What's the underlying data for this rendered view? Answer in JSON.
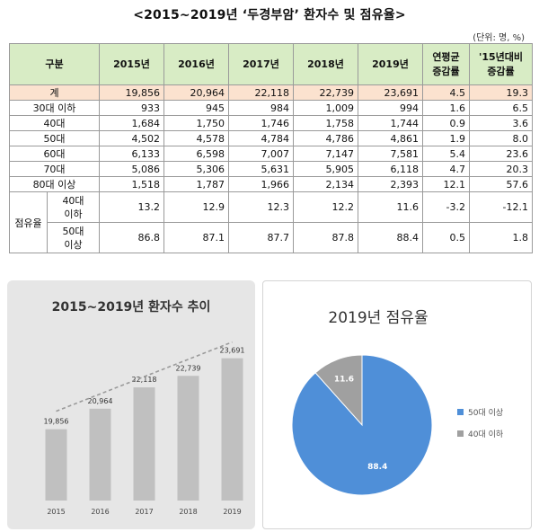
{
  "title": "<2015~2019년 ‘두경부암’ 환자수 및 점유율>",
  "unit": "(단위: 명, %)",
  "table": {
    "headers": {
      "group": "구분",
      "years": [
        "2015년",
        "2016년",
        "2017년",
        "2018년",
        "2019년"
      ],
      "cagr": [
        "연평균",
        "증감률"
      ],
      "change": [
        "'15년대비",
        "증감률"
      ]
    },
    "total": {
      "label": "계",
      "values": [
        "19,856",
        "20,964",
        "22,118",
        "22,739",
        "23,691",
        "4.5",
        "19.3"
      ]
    },
    "rows": [
      {
        "label": "30대 이하",
        "values": [
          "933",
          "945",
          "984",
          "1,009",
          "994",
          "1.6",
          "6.5"
        ]
      },
      {
        "label": "40대",
        "values": [
          "1,684",
          "1,750",
          "1,746",
          "1,758",
          "1,744",
          "0.9",
          "3.6"
        ]
      },
      {
        "label": "50대",
        "values": [
          "4,502",
          "4,578",
          "4,784",
          "4,786",
          "4,861",
          "1.9",
          "8.0"
        ]
      },
      {
        "label": "60대",
        "values": [
          "6,133",
          "6,598",
          "7,007",
          "7,147",
          "7,581",
          "5.4",
          "23.6"
        ]
      },
      {
        "label": "70대",
        "values": [
          "5,086",
          "5,306",
          "5,631",
          "5,905",
          "6,118",
          "4.7",
          "20.3"
        ]
      },
      {
        "label": "80대 이상",
        "values": [
          "1,518",
          "1,787",
          "1,966",
          "2,134",
          "2,393",
          "12.1",
          "57.6"
        ]
      }
    ],
    "share_group": "점유율",
    "share_rows": [
      {
        "label": [
          "40대",
          "이하"
        ],
        "values": [
          "13.2",
          "12.9",
          "12.3",
          "12.2",
          "11.6",
          "-3.2",
          "-12.1"
        ]
      },
      {
        "label": [
          "50대",
          "이상"
        ],
        "values": [
          "86.8",
          "87.1",
          "87.7",
          "87.8",
          "88.4",
          "0.5",
          "1.8"
        ]
      }
    ]
  },
  "chart_data": [
    {
      "type": "bar",
      "title": "2015~2019년 환자수 추이",
      "categories": [
        "2015",
        "2016",
        "2017",
        "2018",
        "2019"
      ],
      "values": [
        19856,
        20964,
        22118,
        22739,
        23691
      ],
      "labels": [
        "19,856",
        "20,964",
        "22,118",
        "22,739",
        "23,691"
      ],
      "trendline": "dashed",
      "ylim": [
        16000,
        24500
      ],
      "colors": {
        "bar": "#c0c0c0",
        "trend": "#9a9a9a"
      }
    },
    {
      "type": "pie",
      "title": "2019년 점유율",
      "slices": [
        {
          "name": "50대 이상",
          "value": 88.4,
          "label": "88.4",
          "color": "#4f8fd8"
        },
        {
          "name": "40대 이하",
          "value": 11.6,
          "label": "11.6",
          "color": "#a0a0a0"
        }
      ],
      "legend": "right"
    }
  ]
}
